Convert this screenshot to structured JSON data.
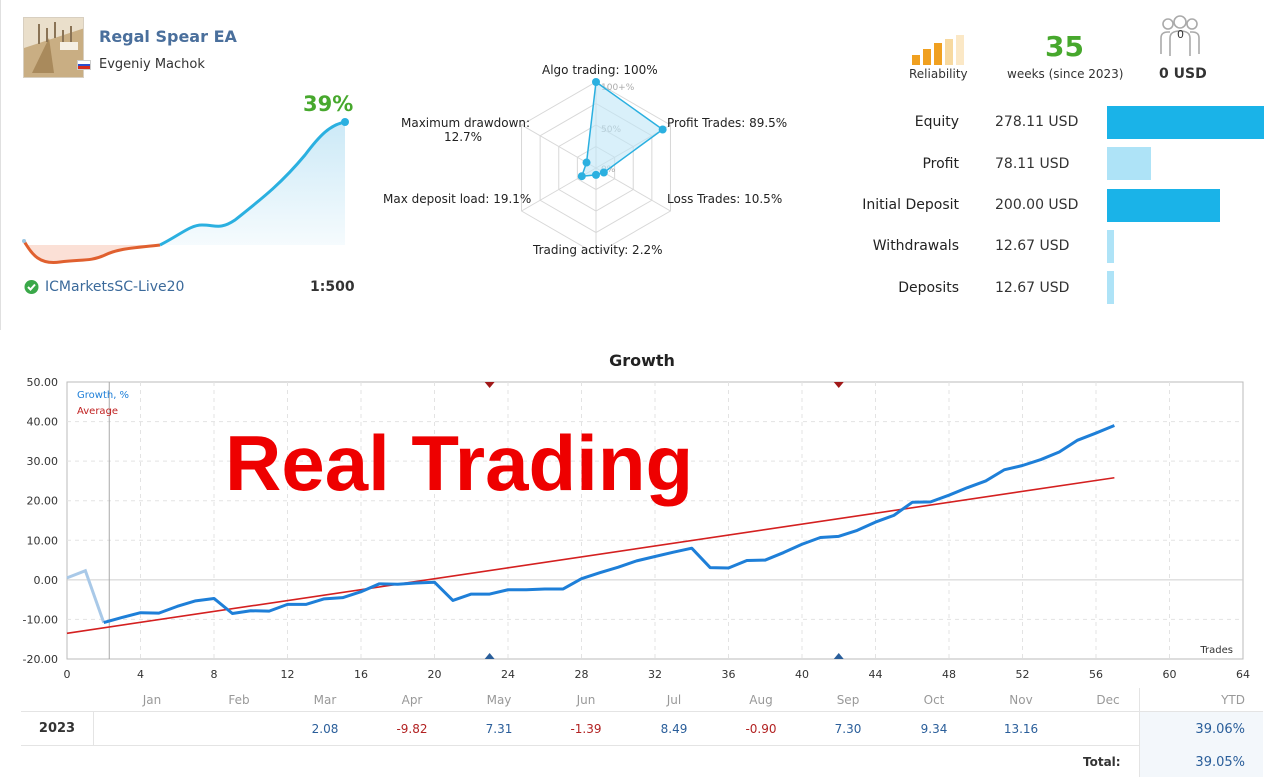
{
  "profile": {
    "ea_name": "Regal Spear EA",
    "author": "Evgeniy Machok",
    "growth_pct": "39%",
    "broker": "ICMarketsSC-Live20",
    "leverage": "1:500"
  },
  "radar": {
    "algo_trading": "Algo trading: 100%",
    "profit_trades": "Profit Trades: 89.5%",
    "loss_trades": "Loss Trades: 10.5%",
    "trading_activity": "Trading activity: 2.2%",
    "max_deposit_load": "Max deposit load: 19.1%",
    "max_drawdown_1": "Maximum drawdown:",
    "max_drawdown_2": "12.7%",
    "ring_100": "100+%",
    "ring_50": "50%",
    "ring_0": "0%",
    "values": {
      "algo": 100,
      "profit": 89.5,
      "loss": 10.5,
      "activity": 2.2,
      "deposit_load": 19.1,
      "drawdown": 12.7
    }
  },
  "summary": {
    "reliability_label": "Reliability",
    "weeks": "35",
    "weeks_label": "weeks (since 2023)",
    "subscribers": "0",
    "subscribers_usd": "0 USD"
  },
  "stats": [
    {
      "label": "Equity",
      "value": "278.11 USD",
      "amount": 278.11
    },
    {
      "label": "Profit",
      "value": "78.11 USD",
      "amount": 78.11
    },
    {
      "label": "Initial Deposit",
      "value": "200.00 USD",
      "amount": 200.0
    },
    {
      "label": "Withdrawals",
      "value": "12.67 USD",
      "amount": 12.67
    },
    {
      "label": "Deposits",
      "value": "12.67 USD",
      "amount": 12.67
    }
  ],
  "colors": {
    "accent_green": "#47a82d",
    "bar_dark": "#1ab3e8",
    "bar_light": "#aee3f7",
    "growth_line": "#1e7fd8",
    "average_line": "#d42020",
    "neg_curve": "#e0602f"
  },
  "growth": {
    "title": "Growth",
    "legend_growth": "Growth, %",
    "legend_average": "Average",
    "watermark": "Real Trading",
    "x_axis_label": "Trades"
  },
  "chart_data": {
    "type": "line",
    "title": "Growth",
    "xlabel": "Trades",
    "ylabel": "",
    "xlim": [
      0,
      64
    ],
    "ylim": [
      -20,
      50
    ],
    "x_ticks": [
      "0",
      "4",
      "8",
      "12",
      "16",
      "20",
      "24",
      "28",
      "32",
      "36",
      "40",
      "44",
      "48",
      "52",
      "56",
      "60",
      "64"
    ],
    "y_ticks": [
      "50.00",
      "40.00",
      "30.00",
      "20.00",
      "10.00",
      "0.00",
      "-10.00",
      "-20.00"
    ],
    "series": [
      {
        "name": "Growth, %",
        "x": [
          0,
          1,
          2,
          3,
          4,
          5,
          6,
          7,
          8,
          9,
          10,
          11,
          12,
          13,
          14,
          15,
          16,
          17,
          18,
          19,
          20,
          21,
          22,
          23,
          24,
          25,
          26,
          27,
          28,
          29,
          30,
          31,
          32,
          33,
          34,
          35,
          36,
          37,
          38,
          39,
          40,
          41,
          42,
          43,
          44,
          45,
          46,
          47,
          48,
          49,
          50,
          51,
          52,
          53,
          54,
          55,
          56,
          57
        ],
        "values": [
          0.5,
          2.3,
          -10.8,
          -9.5,
          -8.3,
          -8.4,
          -6.7,
          -5.3,
          -4.7,
          -8.5,
          -7.8,
          -7.9,
          -6.2,
          -6.2,
          -4.8,
          -4.5,
          -3.0,
          -1.0,
          -1.1,
          -0.8,
          -0.6,
          -5.2,
          -3.6,
          -3.6,
          -2.5,
          -2.5,
          -2.3,
          -2.3,
          0.3,
          1.8,
          3.2,
          4.8,
          5.9,
          7.0,
          8.0,
          3.1,
          3.0,
          4.9,
          5.0,
          6.9,
          9.0,
          10.7,
          11.0,
          12.5,
          14.6,
          16.3,
          19.6,
          19.7,
          21.4,
          23.3,
          25.0,
          27.8,
          28.9,
          30.4,
          32.3,
          35.3,
          37.1,
          39.0
        ]
      },
      {
        "name": "Average",
        "x": [
          0,
          57
        ],
        "values": [
          -13.5,
          25.8
        ]
      }
    ]
  },
  "table": {
    "months": [
      "Jan",
      "Feb",
      "Mar",
      "Apr",
      "May",
      "Jun",
      "Jul",
      "Aug",
      "Sep",
      "Oct",
      "Nov",
      "Dec"
    ],
    "ytd_header": "YTD",
    "year": "2023",
    "values": [
      "",
      "",
      "2.08",
      "-9.82",
      "7.31",
      "-1.39",
      "8.49",
      "-0.90",
      "7.30",
      "9.34",
      "13.16",
      ""
    ],
    "ytd": "39.06%",
    "total_label": "Total:",
    "total": "39.05%"
  }
}
